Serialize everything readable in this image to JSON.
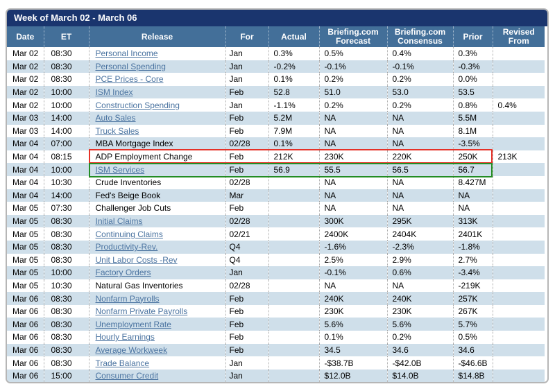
{
  "title": "Week of March 02 - March 06",
  "columns": [
    "Date",
    "ET",
    "Release",
    "For",
    "Actual",
    "Briefing.com Forecast",
    "Briefing.com Consensus",
    "Prior",
    "Revised From"
  ],
  "colors": {
    "title_bar_bg": "#1a356e",
    "header_bg": "#436f99",
    "row_alt_bg": "#cfdfea",
    "link_color": "#4a73a0",
    "highlight_red": "#e53228",
    "highlight_green": "#238c23"
  },
  "rows": [
    {
      "date": "Mar 02",
      "et": "08:30",
      "release": "Personal Income",
      "link": true,
      "for": "Jan",
      "actual": "0.3%",
      "forecast": "0.5%",
      "consensus": "0.4%",
      "prior": "0.3%",
      "revised": "",
      "highlight": ""
    },
    {
      "date": "Mar 02",
      "et": "08:30",
      "release": "Personal Spending",
      "link": true,
      "for": "Jan",
      "actual": "-0.2%",
      "forecast": "-0.1%",
      "consensus": "-0.1%",
      "prior": "-0.3%",
      "revised": "",
      "highlight": ""
    },
    {
      "date": "Mar 02",
      "et": "08:30",
      "release": "PCE Prices - Core",
      "link": true,
      "for": "Jan",
      "actual": "0.1%",
      "forecast": "0.2%",
      "consensus": "0.2%",
      "prior": "0.0%",
      "revised": "",
      "highlight": ""
    },
    {
      "date": "Mar 02",
      "et": "10:00",
      "release": "ISM Index",
      "link": true,
      "for": "Feb",
      "actual": "52.8",
      "forecast": "51.0",
      "consensus": "53.0",
      "prior": "53.5",
      "revised": "",
      "highlight": ""
    },
    {
      "date": "Mar 02",
      "et": "10:00",
      "release": "Construction Spending",
      "link": true,
      "for": "Jan",
      "actual": "-1.1%",
      "forecast": "0.2%",
      "consensus": "0.2%",
      "prior": "0.8%",
      "revised": "0.4%",
      "highlight": ""
    },
    {
      "date": "Mar 03",
      "et": "14:00",
      "release": "Auto Sales",
      "link": true,
      "for": "Feb",
      "actual": "5.2M",
      "forecast": "NA",
      "consensus": "NA",
      "prior": "5.5M",
      "revised": "",
      "highlight": ""
    },
    {
      "date": "Mar 03",
      "et": "14:00",
      "release": "Truck Sales",
      "link": true,
      "for": "Feb",
      "actual": "7.9M",
      "forecast": "NA",
      "consensus": "NA",
      "prior": "8.1M",
      "revised": "",
      "highlight": ""
    },
    {
      "date": "Mar 04",
      "et": "07:00",
      "release": "MBA Mortgage Index",
      "link": false,
      "for": "02/28",
      "actual": "0.1%",
      "forecast": "NA",
      "consensus": "NA",
      "prior": "-3.5%",
      "revised": "",
      "highlight": ""
    },
    {
      "date": "Mar 04",
      "et": "08:15",
      "release": "ADP Employment Change",
      "link": false,
      "for": "Feb",
      "actual": "212K",
      "forecast": "230K",
      "consensus": "220K",
      "prior": "250K",
      "revised": "213K",
      "highlight": "red"
    },
    {
      "date": "Mar 04",
      "et": "10:00",
      "release": "ISM Services",
      "link": true,
      "for": "Feb",
      "actual": "56.9",
      "forecast": "55.5",
      "consensus": "56.5",
      "prior": "56.7",
      "revised": "",
      "highlight": "green"
    },
    {
      "date": "Mar 04",
      "et": "10:30",
      "release": "Crude Inventories",
      "link": false,
      "for": "02/28",
      "actual": "",
      "forecast": "NA",
      "consensus": "NA",
      "prior": "8.427M",
      "revised": "",
      "highlight": ""
    },
    {
      "date": "Mar 04",
      "et": "14:00",
      "release": "Fed's Beige Book",
      "link": false,
      "for": "Mar",
      "actual": "",
      "forecast": "NA",
      "consensus": "NA",
      "prior": "NA",
      "revised": "",
      "highlight": ""
    },
    {
      "date": "Mar 05",
      "et": "07:30",
      "release": "Challenger Job Cuts",
      "link": false,
      "for": "Feb",
      "actual": "",
      "forecast": "NA",
      "consensus": "NA",
      "prior": "NA",
      "revised": "",
      "highlight": ""
    },
    {
      "date": "Mar 05",
      "et": "08:30",
      "release": "Initial Claims",
      "link": true,
      "for": "02/28",
      "actual": "",
      "forecast": "300K",
      "consensus": "295K",
      "prior": "313K",
      "revised": "",
      "highlight": ""
    },
    {
      "date": "Mar 05",
      "et": "08:30",
      "release": "Continuing Claims",
      "link": true,
      "for": "02/21",
      "actual": "",
      "forecast": "2400K",
      "consensus": "2404K",
      "prior": "2401K",
      "revised": "",
      "highlight": ""
    },
    {
      "date": "Mar 05",
      "et": "08:30",
      "release": "Productivity-Rev.",
      "link": true,
      "for": "Q4",
      "actual": "",
      "forecast": "-1.6%",
      "consensus": "-2.3%",
      "prior": "-1.8%",
      "revised": "",
      "highlight": ""
    },
    {
      "date": "Mar 05",
      "et": "08:30",
      "release": "Unit Labor Costs -Rev",
      "link": true,
      "for": "Q4",
      "actual": "",
      "forecast": "2.5%",
      "consensus": "2.9%",
      "prior": "2.7%",
      "revised": "",
      "highlight": ""
    },
    {
      "date": "Mar 05",
      "et": "10:00",
      "release": "Factory Orders",
      "link": true,
      "for": "Jan",
      "actual": "",
      "forecast": "-0.1%",
      "consensus": "0.6%",
      "prior": "-3.4%",
      "revised": "",
      "highlight": ""
    },
    {
      "date": "Mar 05",
      "et": "10:30",
      "release": "Natural Gas Inventories",
      "link": false,
      "for": "02/28",
      "actual": "",
      "forecast": "NA",
      "consensus": "NA",
      "prior": "-219K",
      "revised": "",
      "highlight": ""
    },
    {
      "date": "Mar 06",
      "et": "08:30",
      "release": "Nonfarm Payrolls",
      "link": true,
      "for": "Feb",
      "actual": "",
      "forecast": "240K",
      "consensus": "240K",
      "prior": "257K",
      "revised": "",
      "highlight": ""
    },
    {
      "date": "Mar 06",
      "et": "08:30",
      "release": "Nonfarm Private Payrolls",
      "link": true,
      "for": "Feb",
      "actual": "",
      "forecast": "230K",
      "consensus": "230K",
      "prior": "267K",
      "revised": "",
      "highlight": ""
    },
    {
      "date": "Mar 06",
      "et": "08:30",
      "release": "Unemployment Rate",
      "link": true,
      "for": "Feb",
      "actual": "",
      "forecast": "5.6%",
      "consensus": "5.6%",
      "prior": "5.7%",
      "revised": "",
      "highlight": ""
    },
    {
      "date": "Mar 06",
      "et": "08:30",
      "release": "Hourly Earnings",
      "link": true,
      "for": "Feb",
      "actual": "",
      "forecast": "0.1%",
      "consensus": "0.2%",
      "prior": "0.5%",
      "revised": "",
      "highlight": ""
    },
    {
      "date": "Mar 06",
      "et": "08:30",
      "release": "Average Workweek",
      "link": true,
      "for": "Feb",
      "actual": "",
      "forecast": "34.5",
      "consensus": "34.6",
      "prior": "34.6",
      "revised": "",
      "highlight": ""
    },
    {
      "date": "Mar 06",
      "et": "08:30",
      "release": "Trade Balance",
      "link": true,
      "for": "Jan",
      "actual": "",
      "forecast": "-$38.7B",
      "consensus": "-$42.0B",
      "prior": "-$46.6B",
      "revised": "",
      "highlight": ""
    },
    {
      "date": "Mar 06",
      "et": "15:00",
      "release": "Consumer Credit",
      "link": true,
      "for": "Jan",
      "actual": "",
      "forecast": "$12.0B",
      "consensus": "$14.0B",
      "prior": "$14.8B",
      "revised": "",
      "highlight": ""
    }
  ]
}
